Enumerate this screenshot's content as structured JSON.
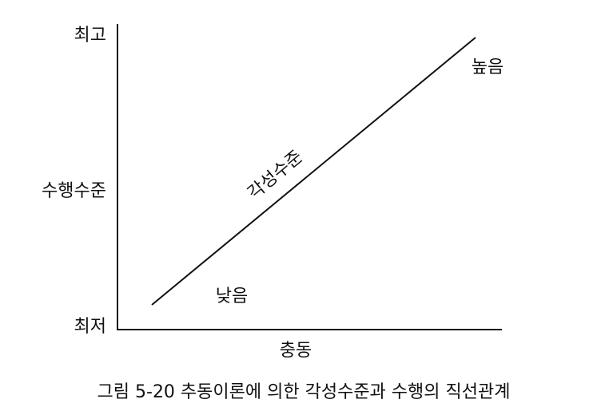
{
  "y_axis": {
    "top": "최고",
    "label": "수행수준",
    "bottom": "최저"
  },
  "x_axis": {
    "label": "충동"
  },
  "line": {
    "label": "각성수준",
    "high": "높음",
    "low": "낮음"
  },
  "caption": "그림 5-20 추동이론에 의한 각성수준과 수행의 직선관계"
}
